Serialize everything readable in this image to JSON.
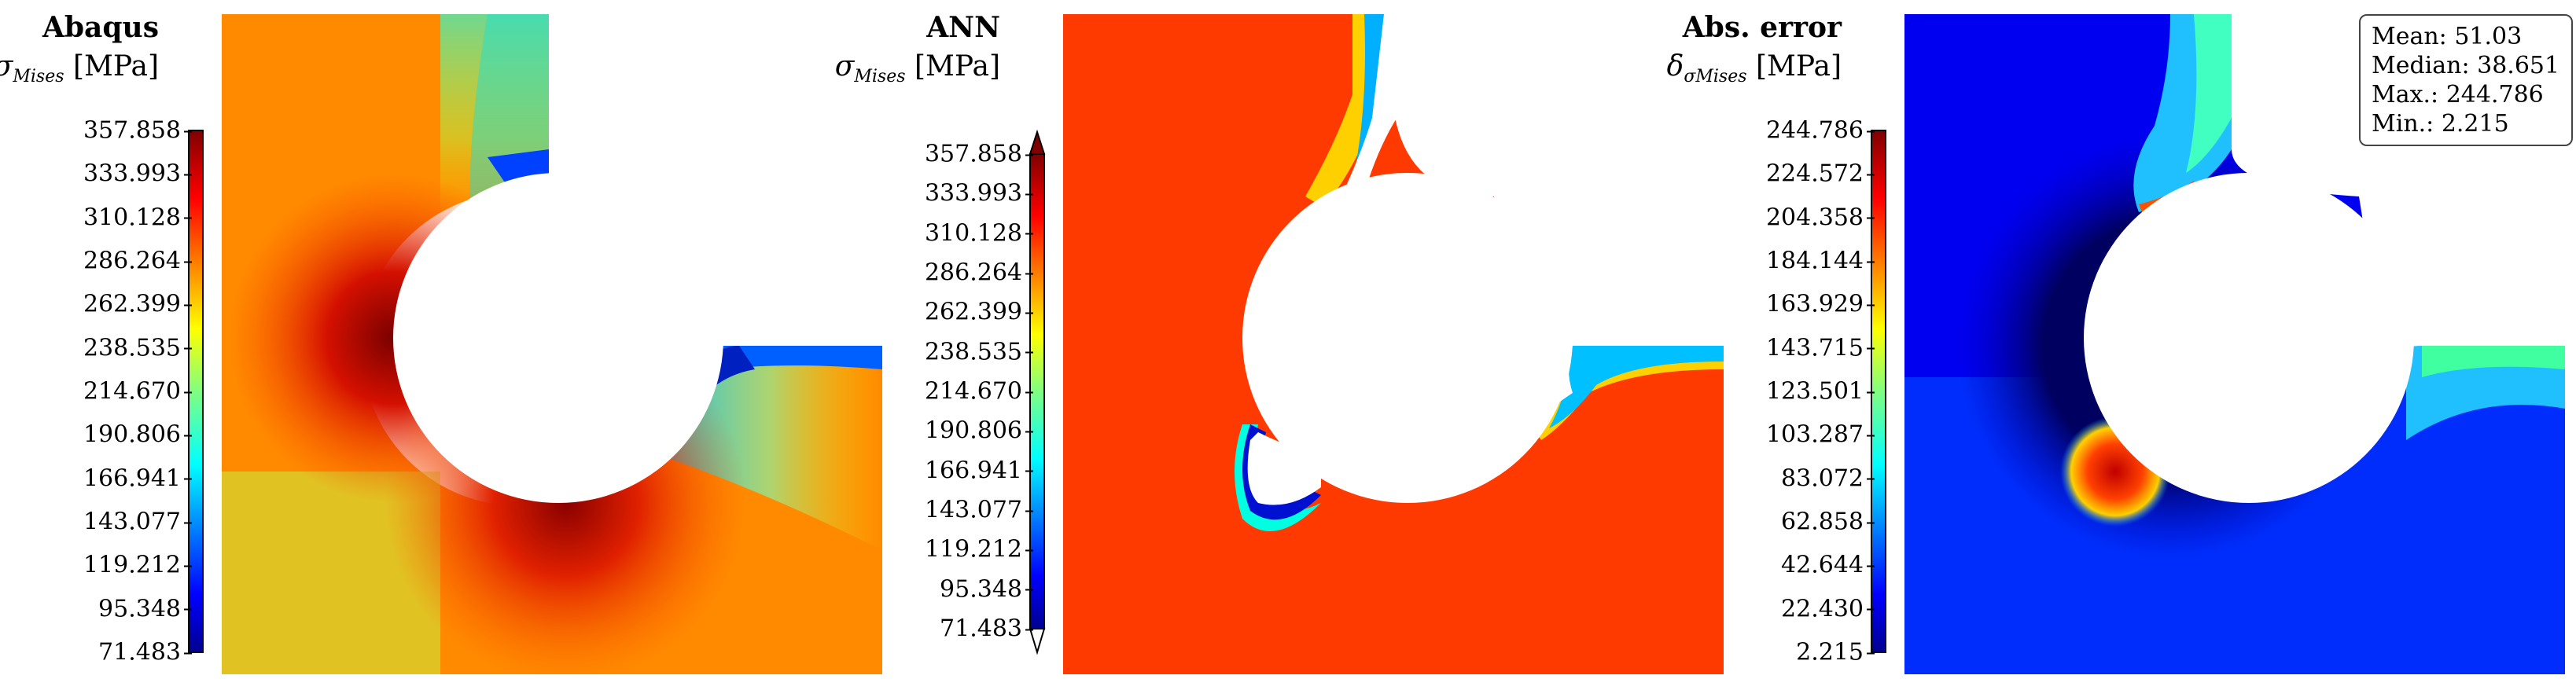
{
  "panels": [
    {
      "title": "Abaqus",
      "quantity_symbol": "σ",
      "quantity_sub": "Mises",
      "quantity_unit": "[MPa]",
      "ticks": [
        "357.858",
        "333.993",
        "310.128",
        "286.264",
        "262.399",
        "238.535",
        "214.670",
        "190.806",
        "166.941",
        "143.077",
        "119.212",
        "95.348",
        "71.483"
      ],
      "colorbar_extensions": false
    },
    {
      "title": "ANN",
      "quantity_symbol": "σ",
      "quantity_sub": "Mises",
      "quantity_unit": "[MPa]",
      "ticks": [
        "357.858",
        "333.993",
        "310.128",
        "286.264",
        "262.399",
        "238.535",
        "214.670",
        "190.806",
        "166.941",
        "143.077",
        "119.212",
        "95.348",
        "71.483"
      ],
      "colorbar_extensions": true
    },
    {
      "title": "Abs. error",
      "quantity_symbol": "δ",
      "quantity_sub": "σMises",
      "quantity_unit": "[MPa]",
      "ticks": [
        "244.786",
        "224.572",
        "204.358",
        "184.144",
        "163.929",
        "143.715",
        "123.501",
        "103.287",
        "83.072",
        "62.858",
        "42.644",
        "22.430",
        "2.215"
      ],
      "colorbar_extensions": false
    }
  ],
  "stats": {
    "mean": "Mean: 51.03",
    "median": "Median: 38.651",
    "max": "Max.: 244.786",
    "min": "Min.: 2.215"
  },
  "colormap": "jet",
  "colors": {
    "jet_dark_blue": "#00008f",
    "jet_blue": "#0000ff",
    "jet_cyan": "#00ffff",
    "jet_yellow": "#ffff00",
    "jet_red": "#ff0000",
    "jet_dark_red": "#800000"
  }
}
